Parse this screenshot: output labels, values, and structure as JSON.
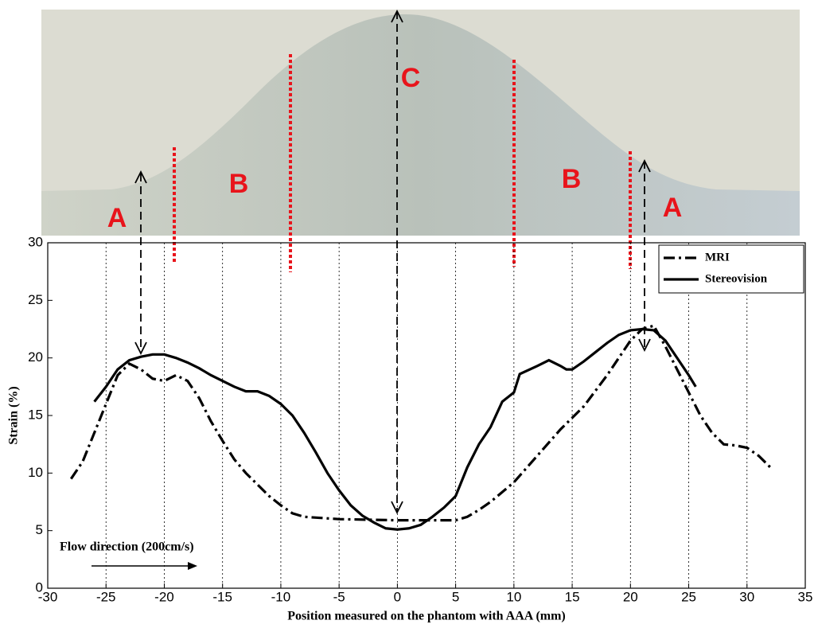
{
  "chart_data": {
    "type": "line",
    "xlabel": "Position measured on the phantom with AAA (mm)",
    "ylabel": "Strain (%)",
    "xlim": [
      -30,
      35
    ],
    "xticks": [
      -30,
      -25,
      -20,
      -15,
      -10,
      -5,
      0,
      5,
      10,
      15,
      20,
      25,
      30,
      35
    ],
    "ylim": [
      0,
      30
    ],
    "yticks": [
      0,
      5,
      10,
      15,
      20,
      25,
      30
    ],
    "grid": "x",
    "legend": "upper right",
    "annotations": [
      "A",
      "B",
      "C",
      "B",
      "A"
    ],
    "flow_label": "Flow direction (200cm/s)",
    "series": [
      {
        "name": "MRI",
        "color": "#000000",
        "style": "dashdot",
        "x": [
          -28,
          -27,
          -26,
          -25,
          -24,
          -23,
          -22,
          -21,
          -20,
          -19,
          -18,
          -17,
          -16,
          -15,
          -14,
          -13,
          -12,
          -11,
          -10,
          -9,
          -8,
          -5,
          0,
          5,
          6,
          7,
          8,
          10,
          12,
          14,
          16,
          18,
          20,
          21,
          22,
          23,
          24,
          25,
          26,
          27,
          28,
          29,
          30,
          31,
          32
        ],
        "values": [
          9.5,
          11,
          13.5,
          16,
          18.5,
          19.5,
          19,
          18.2,
          18,
          18.5,
          18,
          16.5,
          14.5,
          12.8,
          11.2,
          10,
          9,
          8,
          7.2,
          6.5,
          6.2,
          6,
          5.9,
          5.9,
          6.2,
          6.8,
          7.5,
          9.2,
          11.5,
          13.8,
          15.8,
          18.5,
          21.5,
          22.5,
          22.8,
          21,
          19,
          17,
          15,
          13.5,
          12.5,
          12.4,
          12.2,
          11.5,
          10.5
        ]
      },
      {
        "name": "Stereovision",
        "color": "#000000",
        "style": "solid",
        "x": [
          -26,
          -25,
          -24,
          -23,
          -22,
          -21,
          -20,
          -19,
          -18,
          -17,
          -16,
          -15,
          -14,
          -13,
          -12,
          -11,
          -10,
          -9,
          -8,
          -7,
          -6,
          -5,
          -4,
          -3,
          -2,
          -1,
          0,
          1,
          2,
          3,
          4,
          5,
          6,
          7,
          8,
          9,
          10,
          10.5,
          12,
          13,
          14,
          14.5,
          15,
          16,
          17,
          18,
          19,
          20,
          21,
          22,
          23,
          24,
          25,
          25.6
        ],
        "values": [
          16.2,
          17.5,
          19,
          19.8,
          20.1,
          20.3,
          20.3,
          20,
          19.6,
          19.1,
          18.5,
          18,
          17.5,
          17.1,
          17.1,
          16.7,
          16,
          15,
          13.5,
          11.8,
          10,
          8.5,
          7.2,
          6.3,
          5.7,
          5.2,
          5.1,
          5.2,
          5.5,
          6.2,
          7,
          8,
          10.5,
          12.5,
          14,
          16.2,
          17,
          18.6,
          19.3,
          19.8,
          19.3,
          19,
          19,
          19.7,
          20.5,
          21.3,
          22,
          22.4,
          22.5,
          22.4,
          21.5,
          20,
          18.5,
          17.5
        ]
      }
    ]
  }
}
